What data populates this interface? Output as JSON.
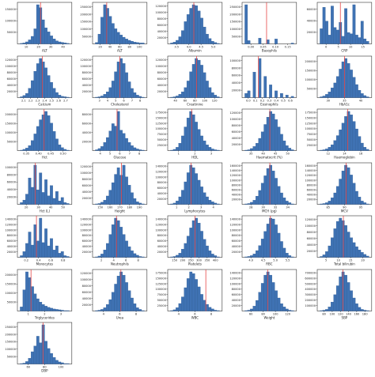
{
  "colors": {
    "bar": "#3f72b3",
    "bar_edge": "#2c5a93",
    "axis": "#333333",
    "median_line": "#e64646",
    "text": "#222222"
  },
  "chart_data": [
    {
      "type": "bar",
      "xlabel": "ALT",
      "ytick_labels": [
        "50000",
        "100000",
        "150000"
      ],
      "xtick_labels": [
        "10",
        "20",
        "30",
        "40"
      ],
      "values": [
        1,
        2,
        4,
        8,
        15,
        30,
        78,
        72,
        48,
        32,
        24,
        16,
        10,
        6,
        4,
        3,
        2,
        1
      ],
      "median_index": 7.5
    },
    {
      "type": "bar",
      "xlabel": "ALT",
      "ytick_labels": [
        "50000",
        "100000",
        "150000",
        "200000",
        "250000"
      ],
      "xtick_labels": [
        "20",
        "40",
        "60",
        "80",
        "100"
      ],
      "values": [
        3,
        22,
        60,
        88,
        80,
        62,
        46,
        34,
        26,
        20,
        15,
        11,
        8,
        6,
        4,
        3,
        2,
        2
      ],
      "median_index": 4.2
    },
    {
      "type": "bar",
      "xlabel": "Albumin",
      "ytick_labels": [
        "20000",
        "40000",
        "60000",
        "80000",
        "100000",
        "120000"
      ],
      "xtick_labels": [
        "3.5",
        "4.0",
        "4.5",
        "5.0"
      ],
      "values": [
        2,
        4,
        8,
        16,
        30,
        50,
        66,
        80,
        88,
        86,
        74,
        58,
        38,
        22,
        12,
        6,
        3,
        1
      ],
      "median_index": 8.6
    },
    {
      "type": "bar",
      "xlabel": "Basophils",
      "ytick_labels": [
        "50000",
        "100000",
        "150000",
        "200000",
        "250000"
      ],
      "xtick_labels": [
        "0.00",
        "0.05",
        "0.10",
        "0.15"
      ],
      "values": [
        96,
        8,
        0,
        0,
        0,
        14,
        0,
        0,
        10,
        0,
        0,
        12,
        0,
        0,
        0,
        0,
        0,
        2
      ],
      "median_index": 8.0
    },
    {
      "type": "bar",
      "xlabel": "CRP",
      "ytick_labels": [
        "20000",
        "40000",
        "60000"
      ],
      "xtick_labels": [
        "0",
        "5",
        "10",
        "15"
      ],
      "values": [
        24,
        58,
        36,
        14,
        60,
        26,
        22,
        34,
        12,
        56,
        18,
        16,
        62,
        14,
        10,
        36,
        8,
        4
      ],
      "median_index": 7.5
    },
    {
      "type": "bar",
      "xlabel": "Calcium",
      "ytick_labels": [
        "20000",
        "40000",
        "60000",
        "80000",
        "100000",
        "120000"
      ],
      "xtick_labels": [
        "2.1",
        "2.2",
        "2.3",
        "2.4",
        "2.5",
        "2.6",
        "2.7"
      ],
      "values": [
        2,
        5,
        10,
        22,
        40,
        62,
        80,
        92,
        84,
        70,
        52,
        36,
        22,
        12,
        6,
        3,
        2,
        1
      ],
      "median_index": 8.2
    },
    {
      "type": "bar",
      "xlabel": "Cholesterol",
      "ytick_labels": [
        "20000",
        "40000",
        "60000",
        "80000",
        "100000",
        "120000"
      ],
      "xtick_labels": [
        "3",
        "4",
        "5",
        "6",
        "7",
        "8"
      ],
      "values": [
        1,
        2,
        4,
        8,
        14,
        24,
        40,
        62,
        86,
        94,
        82,
        60,
        38,
        22,
        12,
        6,
        3,
        1
      ],
      "median_index": 9.0
    },
    {
      "type": "bar",
      "xlabel": "Creatinine",
      "ytick_labels": [
        "20000",
        "40000",
        "60000",
        "80000",
        "100000",
        "120000"
      ],
      "xtick_labels": [
        "40",
        "60",
        "80",
        "100",
        "120"
      ],
      "values": [
        1,
        2,
        4,
        8,
        14,
        24,
        40,
        62,
        80,
        94,
        90,
        78,
        60,
        40,
        24,
        12,
        6,
        2
      ],
      "median_index": 9.6
    },
    {
      "type": "bar",
      "xlabel": "Eosinophils",
      "ytick_labels": [
        "20000",
        "40000",
        "60000",
        "80000",
        "100000"
      ],
      "xtick_labels": [
        "0.0",
        "0.1",
        "0.2",
        "0.3",
        "0.4",
        "0.5",
        "0.6"
      ],
      "values": [
        10,
        16,
        0,
        60,
        0,
        92,
        0,
        50,
        0,
        30,
        0,
        16,
        0,
        10,
        0,
        6,
        0,
        3
      ],
      "median_index": 5.0
    },
    {
      "type": "bar",
      "xlabel": "HbA1c",
      "ytick_labels": [
        "50000",
        "100000",
        "150000",
        "200000"
      ],
      "xtick_labels": [
        "30",
        "35",
        "40"
      ],
      "values": [
        2,
        4,
        8,
        14,
        24,
        36,
        52,
        70,
        88,
        96,
        84,
        68,
        50,
        32,
        18,
        10,
        5,
        2
      ],
      "median_index": 9.0
    },
    {
      "type": "bar",
      "xlabel": "Hct",
      "ytick_labels": [
        "50000",
        "100000",
        "150000",
        "200000"
      ],
      "xtick_labels": [
        "0.35",
        "0.40",
        "0.45",
        "0.50"
      ],
      "values": [
        1,
        3,
        6,
        12,
        24,
        40,
        58,
        74,
        86,
        94,
        84,
        66,
        46,
        28,
        14,
        7,
        3,
        1
      ],
      "median_index": 8.8
    },
    {
      "type": "bar",
      "xlabel": "Glucose",
      "ytick_labels": [
        "20000",
        "40000",
        "60000",
        "80000"
      ],
      "xtick_labels": [
        "4",
        "5",
        "6",
        "7",
        "8"
      ],
      "values": [
        2,
        5,
        10,
        20,
        32,
        48,
        66,
        60,
        96,
        50,
        42,
        30,
        20,
        12,
        7,
        4,
        2,
        1
      ],
      "median_index": 8.0
    },
    {
      "type": "bar",
      "xlabel": "HDL",
      "ytick_labels": [
        "25000",
        "50000",
        "75000",
        "100000",
        "125000",
        "150000",
        "175000"
      ],
      "xtick_labels": [
        "1",
        "2",
        "3"
      ],
      "values": [
        1,
        3,
        8,
        18,
        36,
        58,
        80,
        96,
        88,
        70,
        52,
        36,
        24,
        14,
        8,
        4,
        2,
        1
      ],
      "median_index": 7.8
    },
    {
      "type": "bar",
      "xlabel": "Haematocrit (%)",
      "ytick_labels": [
        "20000",
        "40000",
        "60000",
        "80000",
        "100000",
        "120000"
      ],
      "xtick_labels": [
        "35",
        "40",
        "45",
        "50"
      ],
      "values": [
        1,
        2,
        5,
        10,
        18,
        30,
        46,
        64,
        82,
        96,
        90,
        76,
        58,
        40,
        24,
        12,
        6,
        2
      ],
      "median_index": 9.2
    },
    {
      "type": "bar",
      "xlabel": "Haemoglobin",
      "ytick_labels": [
        "25000",
        "50000",
        "75000",
        "100000",
        "125000",
        "150000",
        "175000"
      ],
      "xtick_labels": [
        "12",
        "14",
        "16"
      ],
      "values": [
        1,
        2,
        4,
        8,
        14,
        24,
        36,
        50,
        66,
        82,
        94,
        86,
        70,
        52,
        34,
        18,
        8,
        3
      ],
      "median_index": 10.2
    },
    {
      "type": "bar",
      "xlabel": "Hct (L)",
      "ytick_labels": [
        "20000",
        "40000",
        "60000",
        "80000",
        "100000"
      ],
      "xtick_labels": [
        "20",
        "30",
        "40",
        "50"
      ],
      "values": [
        4,
        10,
        24,
        62,
        40,
        92,
        34,
        74,
        28,
        58,
        20,
        44,
        14,
        30,
        8,
        16,
        4,
        2
      ],
      "median_index": 5.6
    },
    {
      "type": "bar",
      "xlabel": "Height",
      "ytick_labels": [
        "20000",
        "40000",
        "60000",
        "80000",
        "100000",
        "120000"
      ],
      "xtick_labels": [
        "150",
        "160",
        "170",
        "180",
        "190"
      ],
      "values": [
        1,
        2,
        5,
        10,
        20,
        34,
        52,
        72,
        88,
        70,
        94,
        66,
        46,
        28,
        14,
        6,
        3,
        1
      ],
      "median_index": 9.6
    },
    {
      "type": "bar",
      "xlabel": "Lymphocytes",
      "ytick_labels": [
        "20000",
        "40000",
        "60000",
        "80000",
        "100000",
        "120000",
        "140000"
      ],
      "xtick_labels": [
        "1",
        "2",
        "3",
        "4"
      ],
      "values": [
        1,
        3,
        8,
        18,
        34,
        54,
        76,
        94,
        88,
        74,
        58,
        42,
        28,
        18,
        10,
        6,
        3,
        1
      ],
      "median_index": 7.6
    },
    {
      "type": "bar",
      "xlabel": "MCH (pg)",
      "ytick_labels": [
        "20000",
        "40000",
        "60000",
        "80000",
        "100000",
        "120000",
        "140000",
        "160000"
      ],
      "xtick_labels": [
        "28",
        "30",
        "32",
        "34"
      ],
      "values": [
        1,
        2,
        5,
        10,
        20,
        34,
        52,
        70,
        88,
        96,
        82,
        64,
        44,
        28,
        16,
        8,
        4,
        1
      ],
      "median_index": 9.2
    },
    {
      "type": "bar",
      "xlabel": "MCV",
      "ytick_labels": [
        "20000",
        "40000",
        "60000",
        "80000",
        "100000",
        "120000",
        "140000",
        "160000"
      ],
      "xtick_labels": [
        "85",
        "90",
        "95"
      ],
      "values": [
        1,
        2,
        4,
        8,
        16,
        28,
        44,
        62,
        82,
        96,
        90,
        72,
        52,
        32,
        18,
        8,
        4,
        1
      ],
      "median_index": 9.6
    },
    {
      "type": "bar",
      "xlabel": "Monocytes",
      "ytick_labels": [
        "20000",
        "40000",
        "60000",
        "80000",
        "100000",
        "120000",
        "140000"
      ],
      "xtick_labels": [
        "0.2",
        "0.4",
        "0.6",
        "0.8"
      ],
      "values": [
        4,
        14,
        34,
        62,
        30,
        80,
        40,
        96,
        36,
        70,
        28,
        46,
        18,
        28,
        10,
        14,
        4,
        2
      ],
      "median_index": 6.0
    },
    {
      "type": "bar",
      "xlabel": "Neutrophils",
      "ytick_labels": [
        "20000",
        "40000",
        "60000",
        "80000",
        "100000",
        "120000",
        "140000"
      ],
      "xtick_labels": [
        "2",
        "4",
        "6",
        "8"
      ],
      "values": [
        1,
        3,
        8,
        18,
        34,
        56,
        80,
        96,
        90,
        74,
        56,
        40,
        26,
        16,
        9,
        5,
        2,
        1
      ],
      "median_index": 7.8
    },
    {
      "type": "bar",
      "xlabel": "Platelets",
      "ytick_labels": [
        "20000",
        "40000",
        "60000",
        "80000",
        "100000",
        "120000",
        "140000"
      ],
      "xtick_labels": [
        "150",
        "200",
        "250",
        "300",
        "350",
        "400"
      ],
      "values": [
        1,
        2,
        5,
        10,
        20,
        34,
        52,
        72,
        90,
        96,
        84,
        64,
        44,
        28,
        16,
        8,
        4,
        1
      ],
      "median_index": 9.0
    },
    {
      "type": "bar",
      "xlabel": "RBC",
      "ytick_labels": [
        "20000",
        "40000",
        "60000",
        "80000",
        "100000",
        "120000",
        "140000"
      ],
      "xtick_labels": [
        "4.0",
        "4.5",
        "5.0",
        "5.5"
      ],
      "values": [
        1,
        2,
        4,
        8,
        16,
        28,
        44,
        62,
        80,
        94,
        92,
        78,
        58,
        38,
        22,
        10,
        4,
        1
      ],
      "median_index": 9.4
    },
    {
      "type": "bar",
      "xlabel": "Total bilirubin",
      "ytick_labels": [
        "20000",
        "40000",
        "60000",
        "80000",
        "100000",
        "120000"
      ],
      "xtick_labels": [
        "5",
        "10",
        "15",
        "20"
      ],
      "values": [
        2,
        6,
        14,
        28,
        48,
        70,
        88,
        96,
        90,
        78,
        62,
        48,
        36,
        26,
        18,
        12,
        7,
        3
      ],
      "median_index": 8.6
    },
    {
      "type": "bar",
      "xlabel": "Triglycerides",
      "ytick_labels": [
        "50000",
        "100000",
        "150000",
        "200000"
      ],
      "xtick_labels": [
        "1",
        "2",
        "3"
      ],
      "values": [
        10,
        52,
        96,
        82,
        60,
        42,
        30,
        22,
        16,
        12,
        9,
        7,
        5,
        4,
        3,
        2,
        1,
        1
      ],
      "median_index": 4.0
    },
    {
      "type": "bar",
      "xlabel": "Urea",
      "ytick_labels": [
        "20000",
        "40000",
        "60000",
        "80000",
        "100000",
        "120000"
      ],
      "xtick_labels": [
        "4",
        "6",
        "8"
      ],
      "values": [
        1,
        2,
        4,
        8,
        16,
        28,
        46,
        66,
        86,
        96,
        88,
        70,
        50,
        32,
        18,
        8,
        4,
        1
      ],
      "median_index": 9.4
    },
    {
      "type": "bar",
      "xlabel": "WBC",
      "ytick_labels": [
        "25000",
        "50000",
        "75000",
        "100000",
        "125000",
        "150000",
        "175000"
      ],
      "xtick_labels": [
        "4",
        "6",
        "8"
      ],
      "values": [
        1,
        3,
        8,
        18,
        34,
        56,
        78,
        94,
        90,
        76,
        58,
        40,
        26,
        16,
        9,
        5,
        2,
        1
      ],
      "median_index": 13.0
    },
    {
      "type": "bar",
      "xlabel": "Weight",
      "ytick_labels": [
        "20000",
        "40000",
        "60000",
        "80000",
        "100000",
        "120000",
        "140000"
      ],
      "xtick_labels": [
        "60",
        "80",
        "100",
        "120"
      ],
      "values": [
        1,
        2,
        5,
        12,
        26,
        46,
        68,
        88,
        96,
        88,
        70,
        50,
        32,
        18,
        10,
        5,
        2,
        1
      ],
      "median_index": 8.4
    },
    {
      "type": "bar",
      "xlabel": "SBP",
      "ytick_labels": [
        "100000",
        "200000",
        "300000",
        "400000",
        "500000",
        "600000",
        "700000"
      ],
      "xtick_labels": [
        "80",
        "100",
        "120",
        "140",
        "160",
        "180"
      ],
      "values": [
        1,
        2,
        4,
        10,
        22,
        40,
        62,
        84,
        96,
        88,
        70,
        50,
        32,
        18,
        9,
        4,
        2,
        1
      ],
      "median_index": 8.4
    },
    {
      "type": "bar",
      "xlabel": "DBP",
      "ytick_labels": [
        "50000",
        "100000",
        "150000",
        "200000",
        "250000"
      ],
      "xtick_labels": [
        "60",
        "80",
        "100"
      ],
      "values": [
        1,
        2,
        6,
        14,
        30,
        44,
        68,
        52,
        96,
        56,
        38,
        26,
        16,
        9,
        5,
        3,
        1,
        1
      ],
      "median_index": 8.4
    }
  ]
}
